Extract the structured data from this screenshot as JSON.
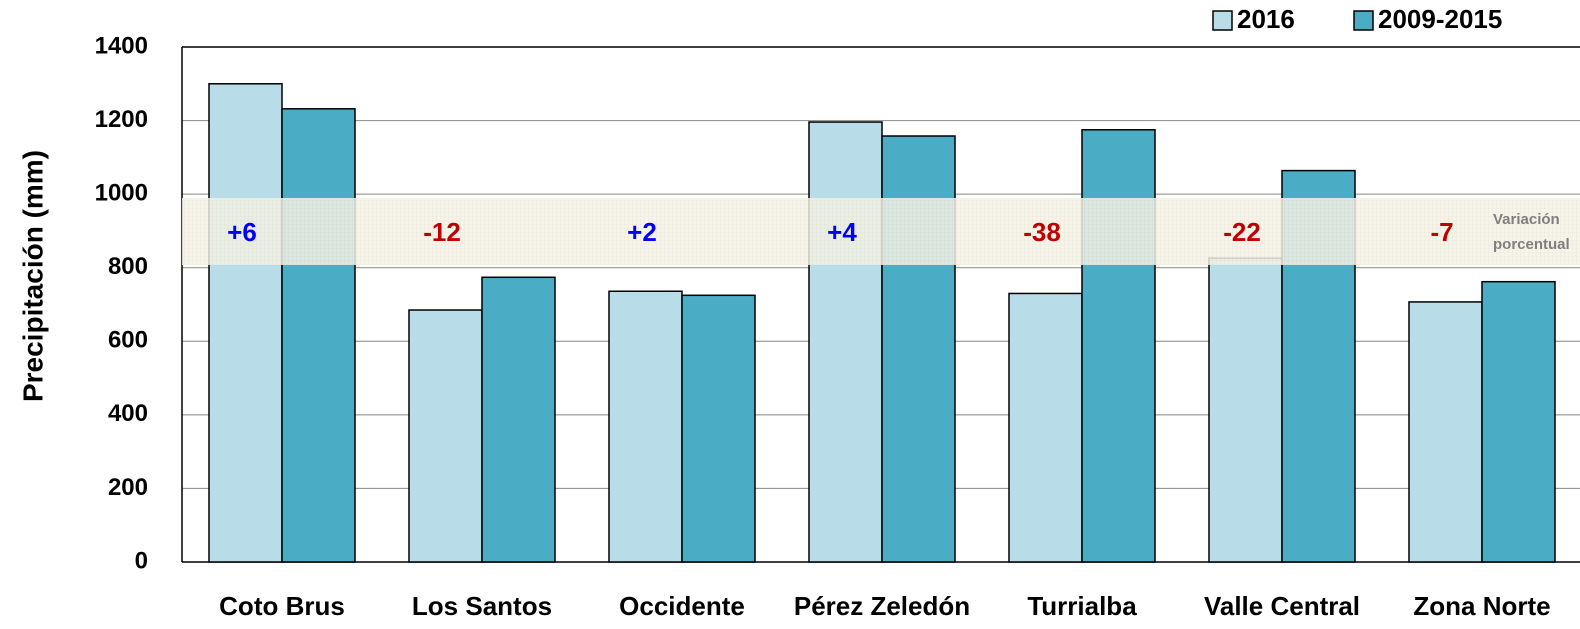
{
  "chart_data": {
    "type": "bar",
    "y_label": "Precipitación (mm)",
    "categories": [
      "Coto Brus",
      "Los Santos",
      "Occidente",
      "Pérez Zeledón",
      "Turrialba",
      "Valle Central",
      "Zona Norte"
    ],
    "series": [
      {
        "name": "2016",
        "color": "#b8dde8",
        "values": [
          1300,
          685,
          736,
          1196,
          730,
          826,
          707
        ]
      },
      {
        "name": "2009-2015",
        "color": "#4bacc6",
        "values": [
          1232,
          774,
          725,
          1158,
          1175,
          1064,
          762
        ]
      }
    ],
    "variation_labels": [
      "+6",
      "-12",
      "+2",
      "+4",
      "-38",
      "-22",
      "-7"
    ],
    "variation_colors": [
      "#0000ff",
      "#c00000",
      "#0000ff",
      "#0000ff",
      "#c00000",
      "#c00000",
      "#c00000"
    ],
    "band_label": [
      "Variación",
      "porcentual"
    ],
    "ylim": [
      0,
      1400
    ],
    "yticks": [
      0,
      200,
      400,
      600,
      800,
      1000,
      1200,
      1400
    ],
    "grid": true
  }
}
